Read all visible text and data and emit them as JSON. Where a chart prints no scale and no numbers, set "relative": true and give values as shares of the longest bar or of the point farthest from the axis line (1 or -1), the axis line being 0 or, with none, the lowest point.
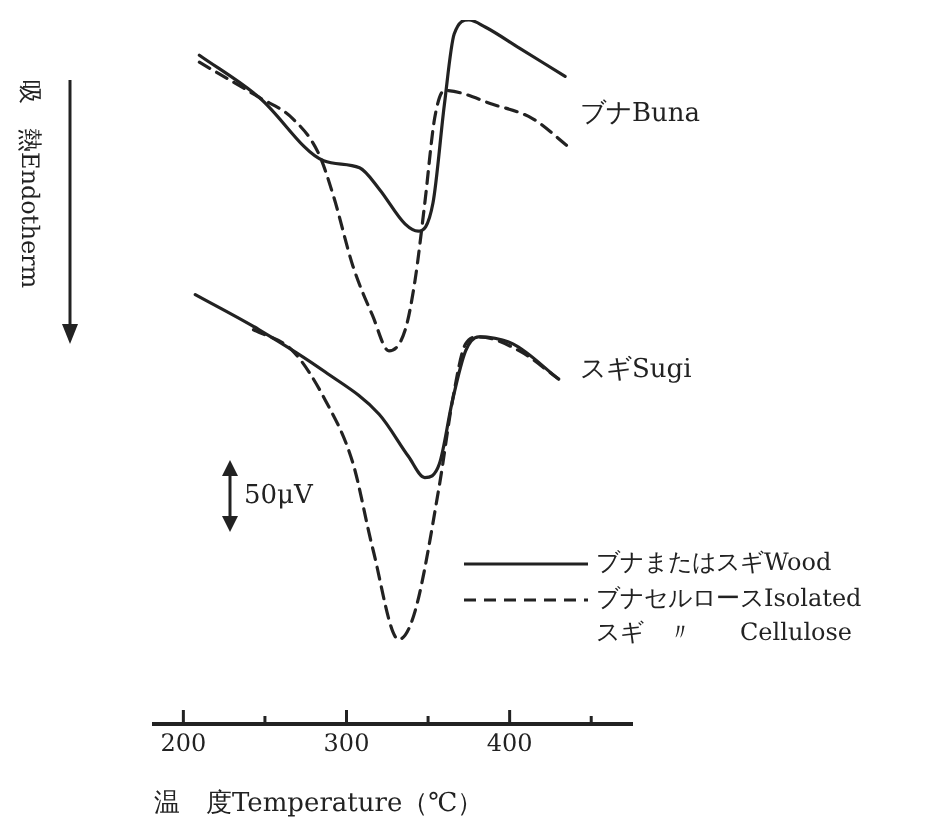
{
  "chart_data": {
    "type": "line",
    "relative": true,
    "xlabel": "温　度Temperature（℃）",
    "ylabel": "吸　熱Endotherm",
    "xlim": [
      182,
      475
    ],
    "xticks": [
      200,
      {
        "value": 250,
        "label": null
      },
      300,
      {
        "value": 350,
        "label": null
      },
      400,
      {
        "value": 450,
        "label": null
      }
    ],
    "tick_labels": "x",
    "grid": false,
    "legend": "bottom right",
    "marker": "none",
    "series": [
      {
        "name": "ブナまたはスギWood",
        "color": "#222222",
        "line_style": "solid",
        "x": [
          209.8,
          246.5,
          286,
          308,
          320,
          336,
          344,
          353,
          360,
          366,
          375,
          385,
          406,
          434
        ],
        "values": [
          0.95,
          0.89,
          0.8,
          0.79,
          0.76,
          0.71,
          0.7,
          0.74,
          0.88,
          0.98,
          1,
          0.99,
          0.96,
          0.92
        ]
      },
      {
        "name": "ブナセルロースIsolated\nスギ　〃　　Cellulose",
        "color": "#222222",
        "line_style": "dashed",
        "x": [
          209.8,
          246.5,
          267,
          283,
          292,
          304,
          316,
          326,
          336,
          342,
          348,
          354,
          360,
          390,
          414,
          436
        ],
        "values": [
          0.94,
          0.89,
          0.86,
          0.81,
          0.75,
          0.65,
          0.58,
          0.53,
          0.56,
          0.63,
          0.74,
          0.86,
          0.9,
          0.88,
          0.86,
          0.82
        ]
      },
      {
        "color": "#222222",
        "line_style": "solid",
        "x": [
          207.3,
          246.5,
          287,
          320,
          338,
          348,
          357,
          365,
          373,
          381,
          402,
          430
        ],
        "values": [
          0.61,
          0.56,
          0.5,
          0.44,
          0.38,
          0.35,
          0.37,
          0.46,
          0.53,
          0.55,
          0.54,
          0.49
        ]
      },
      {
        "color": "#222222",
        "line_style": "dashed",
        "x": [
          243,
          267,
          287,
          304,
          316,
          332,
          342,
          357,
          365,
          373,
          381,
          406,
          430
        ],
        "values": [
          0.56,
          0.53,
          0.46,
          0.37,
          0.25,
          0.12,
          0.16,
          0.34,
          0.46,
          0.54,
          0.55,
          0.53,
          0.49
        ]
      }
    ],
    "annotations": [
      "ブナBuna",
      "スギSugi",
      "50μV"
    ]
  }
}
